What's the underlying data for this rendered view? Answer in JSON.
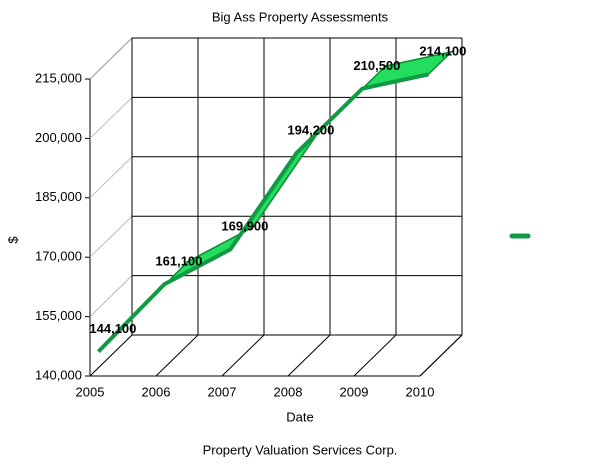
{
  "chart_data": {
    "type": "line3d",
    "title": "Big Ass Property Assessments",
    "x_label": "Date",
    "y_label": "$",
    "caption": "Property Valuation Services Corp.",
    "categories": [
      "2005",
      "2006",
      "2007",
      "2008",
      "2009",
      "2010"
    ],
    "values": [
      144100,
      161100,
      169900,
      194200,
      210500,
      214100
    ],
    "value_labels": [
      "144,100",
      "161,100",
      "169,900",
      "194,200",
      "210,500",
      "214,100"
    ],
    "color": "#22dd5e",
    "ylim": [
      140000,
      215000
    ],
    "yticks": [
      {
        "value": 140000,
        "label": "140,000"
      },
      {
        "value": 155000,
        "label": "155,000"
      },
      {
        "value": 170000,
        "label": "170,000"
      },
      {
        "value": 185000,
        "label": "185,000"
      },
      {
        "value": 200000,
        "label": "200,000"
      },
      {
        "value": 215000,
        "label": "215,000"
      }
    ],
    "grid": true
  }
}
